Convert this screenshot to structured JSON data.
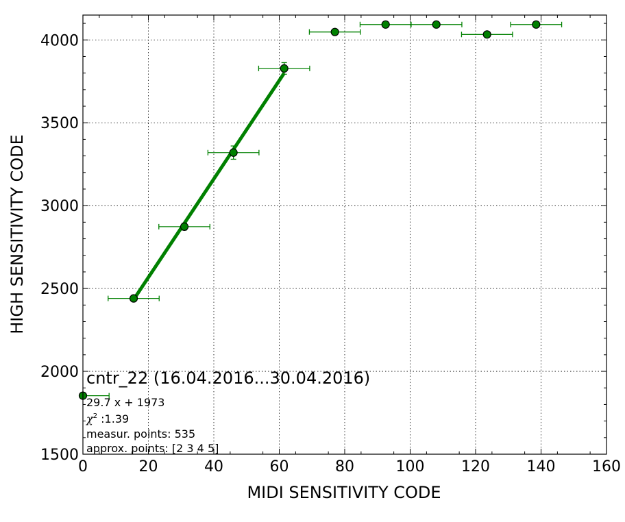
{
  "chart_data": {
    "type": "scatter",
    "xlabel": "MIDI SENSITIVITY CODE",
    "ylabel": "HIGH SENSITIVITY CODE",
    "xlim": [
      0,
      160
    ],
    "ylim": [
      1500,
      4150
    ],
    "xticks": [
      0,
      20,
      40,
      60,
      80,
      100,
      120,
      140,
      160
    ],
    "yticks": [
      1500,
      2000,
      2500,
      3000,
      3500,
      4000
    ],
    "xtick_labels": [
      "0",
      "20",
      "40",
      "60",
      "80",
      "100",
      "120",
      "140",
      "160"
    ],
    "ytick_labels": [
      "1500",
      "2000",
      "2500",
      "3000",
      "3500",
      "4000"
    ],
    "grid": true,
    "colors": {
      "series": "#008000",
      "marker_edge": "#000000"
    },
    "points": [
      {
        "x": 15.5,
        "y": 2440,
        "xerr": 7.8,
        "yerr": 5
      },
      {
        "x": 31.0,
        "y": 2873,
        "xerr": 7.8,
        "yerr": 20
      },
      {
        "x": 46.0,
        "y": 3320,
        "xerr": 7.8,
        "yerr": 40
      },
      {
        "x": 61.5,
        "y": 3828,
        "xerr": 7.8,
        "yerr": 35
      },
      {
        "x": 77.0,
        "y": 4048,
        "xerr": 7.8,
        "yerr": 0
      },
      {
        "x": 92.5,
        "y": 4093,
        "xerr": 7.8,
        "yerr": 0
      },
      {
        "x": 108.0,
        "y": 4093,
        "xerr": 7.8,
        "yerr": 0
      },
      {
        "x": 123.5,
        "y": 4033,
        "xerr": 7.8,
        "yerr": 0
      },
      {
        "x": 138.5,
        "y": 4093,
        "xerr": 7.8,
        "yerr": 0
      }
    ],
    "fit_line": {
      "x_start": 15.5,
      "x_end": 61.5,
      "slope": 29.7,
      "intercept": 1973
    },
    "origin_marker": {
      "x": 0,
      "y": 1853,
      "xerr_right": 8
    }
  },
  "annotation": {
    "title": "cntr_22 (16.04.2016...30.04.2016)",
    "equation": "29.7 x + 1973",
    "chi_symbol": "χ",
    "chi_exp": "2",
    "chi_value": " :1.39",
    "measur_points": "measur. points: 535",
    "approx_points": "approx. points: [2 3 4 5]"
  }
}
